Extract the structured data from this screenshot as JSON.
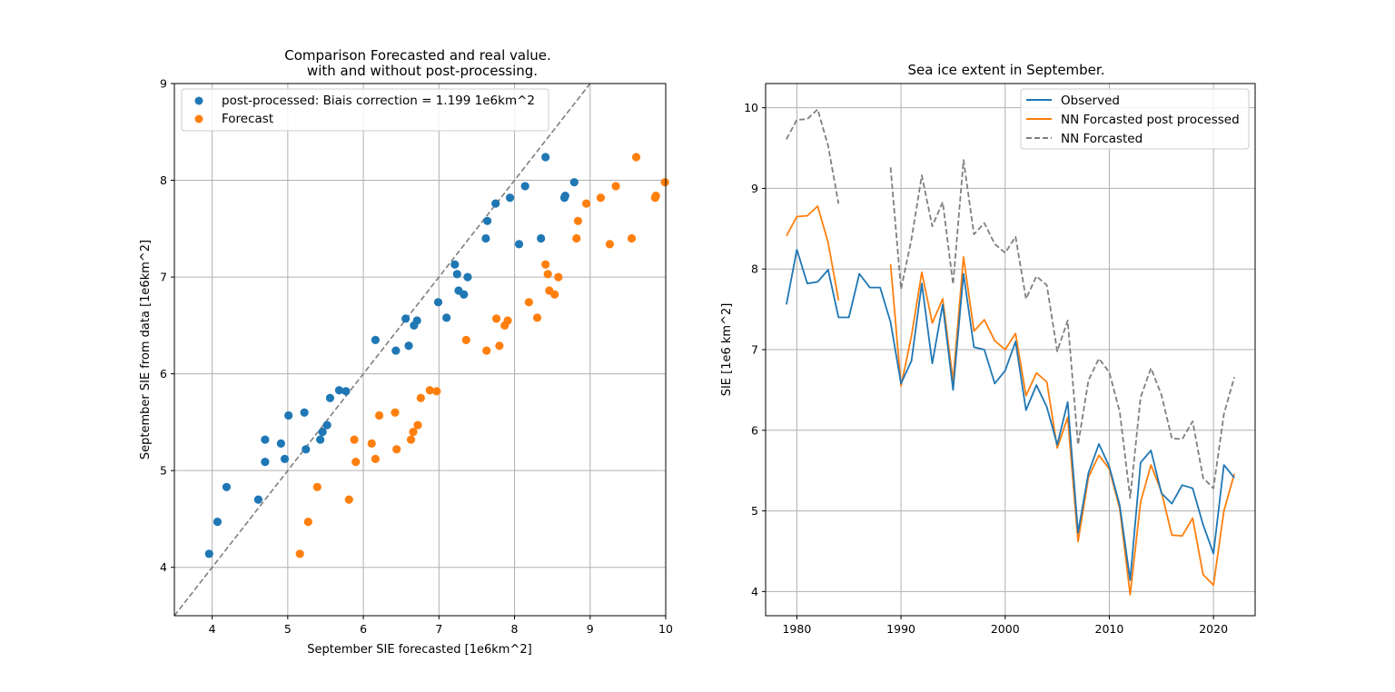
{
  "chart_data": [
    {
      "type": "scatter",
      "title": [
        "Comparison Forecasted and real value.",
        "with and without post-processing."
      ],
      "xlabel": "September SIE forecasted [1e6km^2]",
      "ylabel": "September SIE from data [1e6km^2]",
      "xlim": [
        3.5,
        10
      ],
      "ylim": [
        3.5,
        9
      ],
      "xticks": [
        "4",
        "5",
        "6",
        "7",
        "8",
        "9",
        "10"
      ],
      "yticks": [
        "4",
        "5",
        "6",
        "7",
        "8",
        "9"
      ],
      "grid": true,
      "legend_position": "top-left",
      "reference_line": {
        "style": "dashed",
        "color": "#7f7f7f",
        "slope": 1,
        "intercept": 0
      },
      "series": [
        {
          "name": "post-processed: Biais correction = 1.199 1e6km^2",
          "color": "#1f77b4",
          "points": [
            [
              3.96,
              4.14
            ],
            [
              4.07,
              4.47
            ],
            [
              4.19,
              4.83
            ],
            [
              4.61,
              4.7
            ],
            [
              4.7,
              5.09
            ],
            [
              4.7,
              5.32
            ],
            [
              4.91,
              5.28
            ],
            [
              4.96,
              5.12
            ],
            [
              5.01,
              5.57
            ],
            [
              5.22,
              5.6
            ],
            [
              5.24,
              5.22
            ],
            [
              5.43,
              5.32
            ],
            [
              5.46,
              5.4
            ],
            [
              5.52,
              5.47
            ],
            [
              5.56,
              5.75
            ],
            [
              5.68,
              5.83
            ],
            [
              5.77,
              5.82
            ],
            [
              6.16,
              6.35
            ],
            [
              6.43,
              6.24
            ],
            [
              6.56,
              6.57
            ],
            [
              6.6,
              6.29
            ],
            [
              6.67,
              6.5
            ],
            [
              6.71,
              6.55
            ],
            [
              6.99,
              6.74
            ],
            [
              7.1,
              6.58
            ],
            [
              7.21,
              7.13
            ],
            [
              7.24,
              7.03
            ],
            [
              7.26,
              6.86
            ],
            [
              7.33,
              6.82
            ],
            [
              7.38,
              7.0
            ],
            [
              7.62,
              7.4
            ],
            [
              7.64,
              7.58
            ],
            [
              7.75,
              7.76
            ],
            [
              7.94,
              7.82
            ],
            [
              8.06,
              7.34
            ],
            [
              8.14,
              7.94
            ],
            [
              8.35,
              7.4
            ],
            [
              8.41,
              8.24
            ],
            [
              8.66,
              7.82
            ],
            [
              8.67,
              7.84
            ],
            [
              8.79,
              7.98
            ]
          ]
        },
        {
          "name": "Forecast",
          "color": "#ff7f0e",
          "points": [
            [
              5.16,
              4.14
            ],
            [
              5.27,
              4.47
            ],
            [
              5.39,
              4.83
            ],
            [
              5.81,
              4.7
            ],
            [
              5.9,
              5.09
            ],
            [
              5.88,
              5.32
            ],
            [
              6.11,
              5.28
            ],
            [
              6.16,
              5.12
            ],
            [
              6.21,
              5.57
            ],
            [
              6.42,
              5.6
            ],
            [
              6.44,
              5.22
            ],
            [
              6.63,
              5.32
            ],
            [
              6.66,
              5.4
            ],
            [
              6.72,
              5.47
            ],
            [
              6.76,
              5.75
            ],
            [
              6.88,
              5.83
            ],
            [
              6.97,
              5.82
            ],
            [
              7.36,
              6.35
            ],
            [
              7.63,
              6.24
            ],
            [
              7.76,
              6.57
            ],
            [
              7.8,
              6.29
            ],
            [
              7.87,
              6.5
            ],
            [
              7.91,
              6.55
            ],
            [
              8.19,
              6.74
            ],
            [
              8.3,
              6.58
            ],
            [
              8.41,
              7.13
            ],
            [
              8.44,
              7.03
            ],
            [
              8.46,
              6.86
            ],
            [
              8.53,
              6.82
            ],
            [
              8.58,
              7.0
            ],
            [
              8.82,
              7.4
            ],
            [
              8.84,
              7.58
            ],
            [
              8.95,
              7.76
            ],
            [
              9.14,
              7.82
            ],
            [
              9.26,
              7.34
            ],
            [
              9.34,
              7.94
            ],
            [
              9.55,
              7.4
            ],
            [
              9.61,
              8.24
            ],
            [
              9.86,
              7.82
            ],
            [
              9.87,
              7.84
            ],
            [
              9.99,
              7.98
            ]
          ]
        }
      ]
    },
    {
      "type": "line",
      "title": "Sea ice extent in September.",
      "xlabel": "",
      "ylabel": "SIE [1e6 km^2]",
      "xlim": [
        1977,
        2024
      ],
      "ylim": [
        3.7,
        10.3
      ],
      "xticks": [
        1980,
        1990,
        2000,
        2010,
        2020
      ],
      "yticks": [
        4,
        5,
        6,
        7,
        8,
        9,
        10
      ],
      "grid": true,
      "legend_position": "top-right",
      "x": [
        1979,
        1980,
        1981,
        1982,
        1983,
        1984,
        1985,
        1986,
        1987,
        1988,
        1989,
        1990,
        1991,
        1992,
        1993,
        1994,
        1995,
        1996,
        1997,
        1998,
        1999,
        2000,
        2001,
        2002,
        2003,
        2004,
        2005,
        2006,
        2007,
        2008,
        2009,
        2010,
        2011,
        2012,
        2013,
        2014,
        2015,
        2016,
        2017,
        2018,
        2019,
        2020,
        2021,
        2022
      ],
      "series": [
        {
          "name": "Observed",
          "color": "#1f77b4",
          "style": "solid",
          "values": [
            7.56,
            8.24,
            7.82,
            7.84,
            7.99,
            7.4,
            7.4,
            7.94,
            7.77,
            7.77,
            7.34,
            6.58,
            6.86,
            7.82,
            6.83,
            7.56,
            6.5,
            7.94,
            7.03,
            7.0,
            6.58,
            6.74,
            7.1,
            6.25,
            6.56,
            6.29,
            5.82,
            6.35,
            4.73,
            5.47,
            5.83,
            5.55,
            5.07,
            4.14,
            5.6,
            5.75,
            5.22,
            5.09,
            5.32,
            5.28,
            4.83,
            4.47,
            5.57,
            5.41
          ]
        },
        {
          "name": "NN Forcasted post processed",
          "color": "#ff7f0e",
          "style": "solid",
          "values": [
            8.41,
            8.65,
            8.66,
            8.78,
            8.33,
            7.61,
            null,
            null,
            null,
            null,
            8.06,
            6.55,
            7.17,
            7.96,
            7.33,
            7.63,
            6.61,
            8.15,
            7.23,
            7.37,
            7.11,
            7.0,
            7.2,
            6.43,
            6.71,
            6.6,
            5.78,
            6.16,
            4.62,
            5.42,
            5.69,
            5.52,
            5.03,
            3.96,
            5.11,
            5.57,
            5.24,
            4.7,
            4.69,
            4.91,
            4.21,
            4.08,
            5.0,
            5.46
          ]
        },
        {
          "name": "NN Forcasted",
          "color": "#7f7f7f",
          "style": "dashed",
          "values": [
            9.61,
            9.85,
            9.86,
            9.98,
            9.53,
            8.81,
            null,
            null,
            null,
            null,
            9.26,
            7.75,
            8.37,
            9.16,
            8.53,
            8.83,
            7.81,
            9.35,
            8.43,
            8.57,
            8.31,
            8.2,
            8.4,
            7.63,
            7.91,
            7.8,
            6.98,
            7.36,
            5.82,
            6.62,
            6.89,
            6.72,
            6.23,
            5.16,
            6.41,
            6.77,
            6.44,
            5.9,
            5.89,
            6.11,
            5.41,
            5.28,
            6.2,
            6.66
          ]
        }
      ]
    }
  ]
}
